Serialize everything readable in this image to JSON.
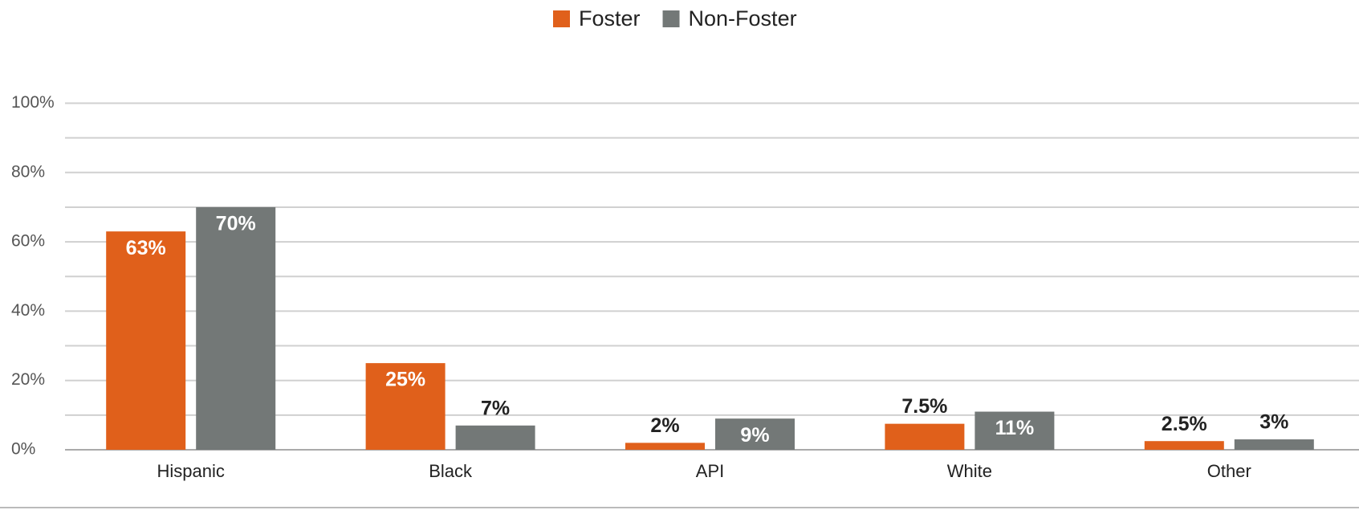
{
  "chart_data": {
    "type": "bar",
    "categories": [
      "Hispanic",
      "Black",
      "API",
      "White",
      "Other"
    ],
    "series": [
      {
        "name": "Foster",
        "color": "#e0601b",
        "values": [
          63,
          25,
          2,
          7.5,
          2.5
        ],
        "value_labels": [
          "63%",
          "25%",
          "2%",
          "7.5%",
          "2.5%"
        ]
      },
      {
        "name": "Non-Foster",
        "color": "#737877",
        "values": [
          70,
          7,
          9,
          11,
          3
        ],
        "value_labels": [
          "70%",
          "7%",
          "9%",
          "11%",
          "3%"
        ]
      }
    ],
    "ylim": [
      0,
      100
    ],
    "yticks": [
      {
        "value": 0,
        "label": "0%"
      },
      {
        "value": 20,
        "label": "20%"
      },
      {
        "value": 40,
        "label": "40%"
      },
      {
        "value": 60,
        "label": "60%"
      },
      {
        "value": 80,
        "label": "80%"
      },
      {
        "value": 100,
        "label": "100%"
      }
    ],
    "minor_yticks": [
      10,
      30,
      50,
      70,
      90
    ],
    "grid": true,
    "legend": "top"
  }
}
